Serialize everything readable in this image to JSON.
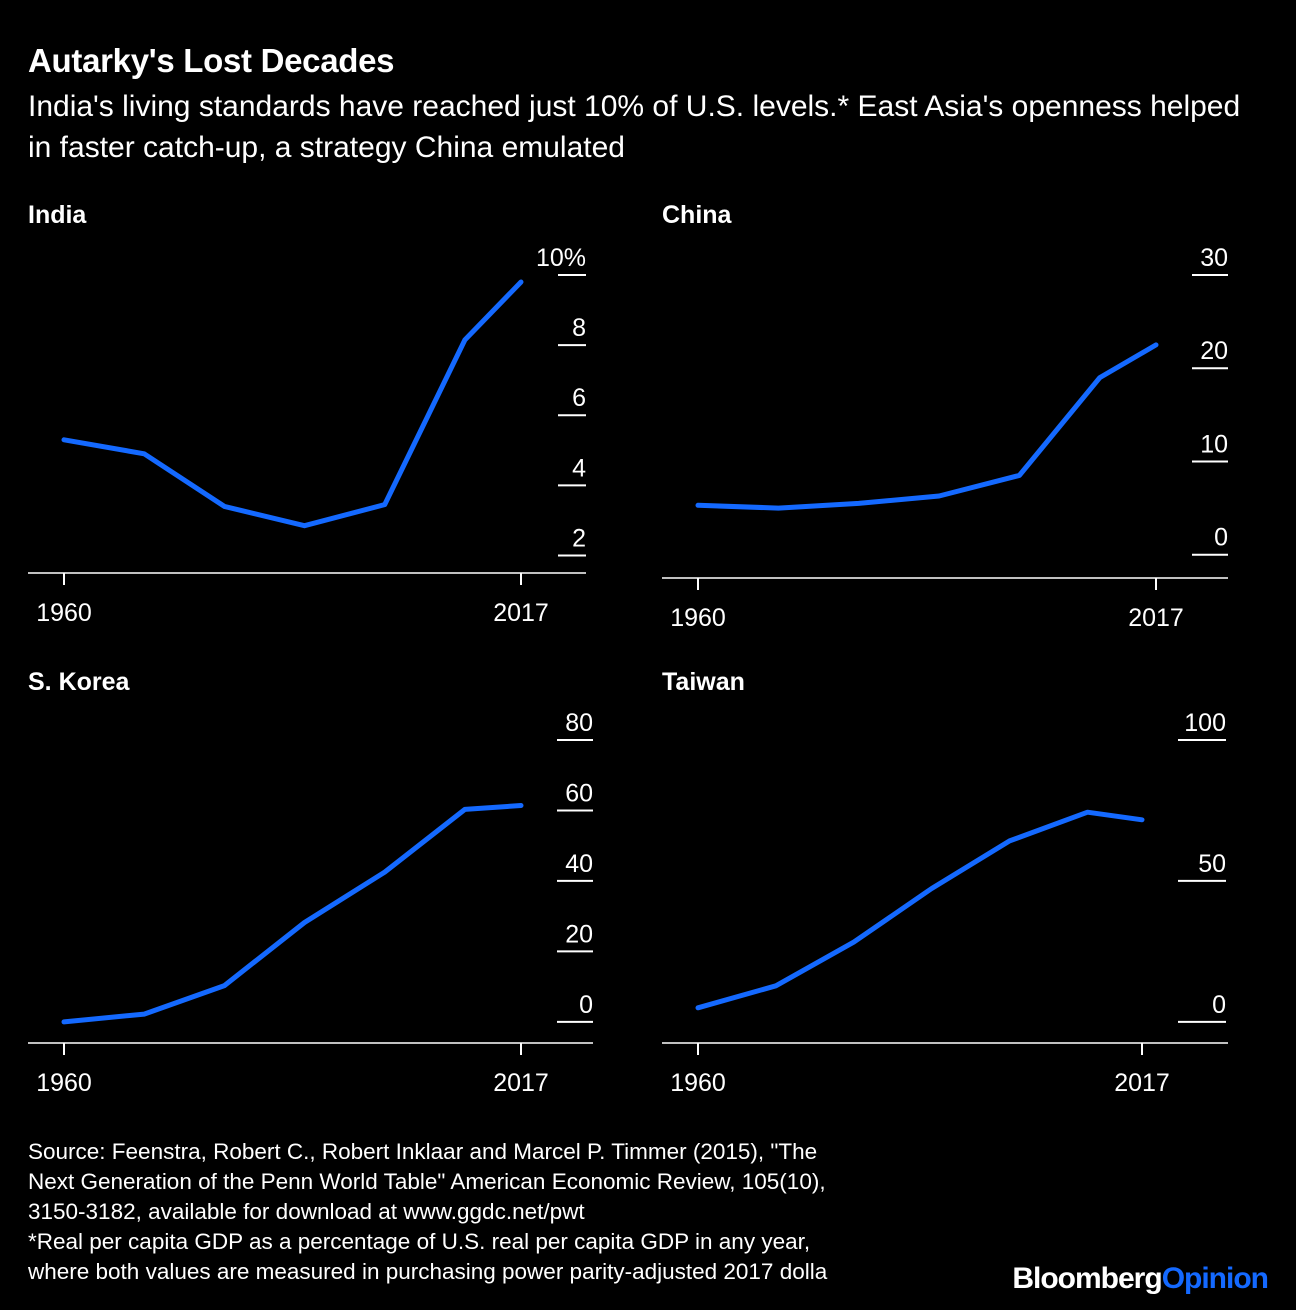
{
  "header": {
    "title": "Autarky's Lost Decades",
    "subtitle": "India's living standards have reached just 10% of U.S. levels.* East Asia's openness helped in faster catch-up, a strategy China emulated"
  },
  "colors": {
    "background": "#000000",
    "text": "#ffffff",
    "series": "#1469ff"
  },
  "chart_data": [
    {
      "type": "line",
      "title": "India",
      "x": [
        1960,
        1970,
        1980,
        1990,
        2000,
        2010,
        2017
      ],
      "values": [
        5.3,
        4.9,
        3.4,
        2.85,
        3.45,
        8.15,
        9.8
      ],
      "ylim": [
        1.5,
        10.5
      ],
      "yticks": [
        2,
        4,
        6,
        8,
        10
      ],
      "ytick_labels": [
        "2",
        "4",
        "6",
        "8",
        "10%"
      ],
      "xtick_labels": [
        "1960",
        "2017"
      ],
      "grid": false
    },
    {
      "type": "line",
      "title": "China",
      "x": [
        1960,
        1970,
        1980,
        1990,
        2000,
        2010,
        2017
      ],
      "values": [
        5.3,
        5.0,
        5.5,
        6.3,
        8.5,
        19.0,
        22.5
      ],
      "ylim": [
        -2.5,
        30
      ],
      "yticks": [
        0,
        10,
        20,
        30
      ],
      "ytick_labels": [
        "0",
        "10",
        "20",
        "30"
      ],
      "xtick_labels": [
        "1960",
        "2017"
      ],
      "grid": false
    },
    {
      "type": "line",
      "title": "S. Korea",
      "x": [
        1960,
        1970,
        1980,
        1990,
        2000,
        2010,
        2017
      ],
      "values": [
        0,
        2.2,
        10.3,
        28.2,
        42.5,
        60.3,
        61.4
      ],
      "ylim": [
        -6,
        80
      ],
      "yticks": [
        0,
        20,
        40,
        60,
        80
      ],
      "ytick_labels": [
        "0",
        "20",
        "40",
        "60",
        "80"
      ],
      "xtick_labels": [
        "1960",
        "2017"
      ],
      "grid": false
    },
    {
      "type": "line",
      "title": "Taiwan",
      "x": [
        1960,
        1970,
        1980,
        1990,
        2000,
        2010,
        2017
      ],
      "values": [
        5.0,
        12.8,
        28.3,
        47.3,
        64.2,
        74.4,
        71.7
      ],
      "ylim": [
        -7.5,
        100
      ],
      "yticks": [
        0,
        50,
        100
      ],
      "ytick_labels": [
        "0",
        "50",
        "100"
      ],
      "xtick_labels": [
        "1960",
        "2017"
      ],
      "grid": false
    }
  ],
  "footer": {
    "source_lines": [
      "Source: Feenstra, Robert C., Robert Inklaar and Marcel P. Timmer (2015), \"The",
      "Next Generation of the Penn World Table\" American Economic Review, 105(10),",
      "3150-3182, available for download at www.ggdc.net/pwt",
      "*Real per capita GDP as a percentage of U.S. real per capita GDP in any year,",
      "where both values are measured in purchasing power parity-adjusted 2017 dolla"
    ],
    "brand_bloomberg": "Bloomberg",
    "brand_opinion": "Opinion"
  }
}
